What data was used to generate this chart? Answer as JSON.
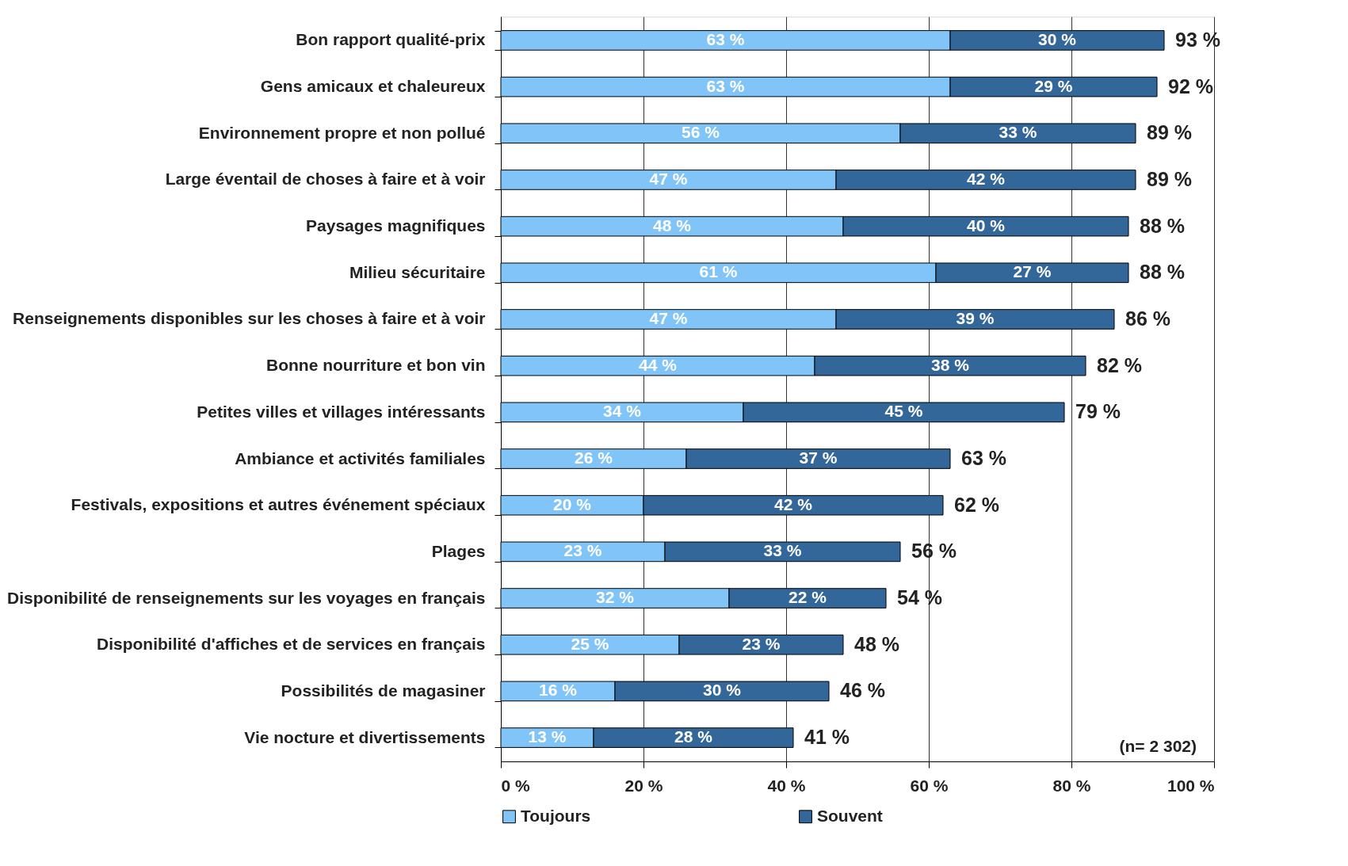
{
  "chart_data": {
    "type": "bar",
    "orientation": "horizontal",
    "stacked": true,
    "categories": [
      "Bon rapport qualité-prix",
      "Gens amicaux et chaleureux",
      "Environnement propre et non pollué",
      "Large éventail de choses à faire et à voir",
      "Paysages magnifiques",
      "Milieu sécuritaire",
      "Renseignements disponibles sur les choses à faire et à voir",
      "Bonne nourriture et bon vin",
      "Petites villes et villages intéressants",
      "Ambiance et activités familiales",
      "Festivals, expositions et autres événement spéciaux",
      "Plages",
      "Disponibilité de renseignements sur les voyages en français",
      "Disponibilité d'affiches et de services en français",
      "Possibilités de magasiner",
      "Vie nocture et divertissements"
    ],
    "series": [
      {
        "name": "Toujours",
        "color": "#80c4f8",
        "values": [
          63,
          63,
          56,
          47,
          48,
          61,
          47,
          44,
          34,
          26,
          20,
          23,
          32,
          25,
          16,
          13
        ],
        "value_labels": [
          "63 %",
          "63 %",
          "56 %",
          "47 %",
          "48 %",
          "61 %",
          "47 %",
          "44 %",
          "34 %",
          "26 %",
          "20 %",
          "23 %",
          "32 %",
          "25 %",
          "16 %",
          "13 %"
        ]
      },
      {
        "name": "Souvent",
        "color": "#336699",
        "values": [
          30,
          29,
          33,
          42,
          40,
          27,
          39,
          38,
          45,
          37,
          42,
          33,
          22,
          23,
          30,
          28
        ],
        "value_labels": [
          "30 %",
          "29 %",
          "33 %",
          "42 %",
          "40 %",
          "27 %",
          "39 %",
          "38 %",
          "45 %",
          "37 %",
          "42 %",
          "33 %",
          "22 %",
          "23 %",
          "30 %",
          "28 %"
        ]
      }
    ],
    "totals": [
      "93 %",
      "92 %",
      "89 %",
      "89 %",
      "88 %",
      "88 %",
      "86 %",
      "82 %",
      "79 %",
      "63 %",
      "62 %",
      "56 %",
      "54 %",
      "48 %",
      "46 %",
      "41 %"
    ],
    "xlim": [
      0,
      100
    ],
    "xticks": [
      {
        "value": 0,
        "label": "0 %"
      },
      {
        "value": 20,
        "label": "20 %"
      },
      {
        "value": 40,
        "label": "40 %"
      },
      {
        "value": 60,
        "label": "60 %"
      },
      {
        "value": 80,
        "label": "80 %"
      },
      {
        "value": 100,
        "label": "100 %"
      }
    ],
    "grid": "x",
    "legend": "bottom",
    "annotations": [
      "(n= 2 302)"
    ]
  }
}
